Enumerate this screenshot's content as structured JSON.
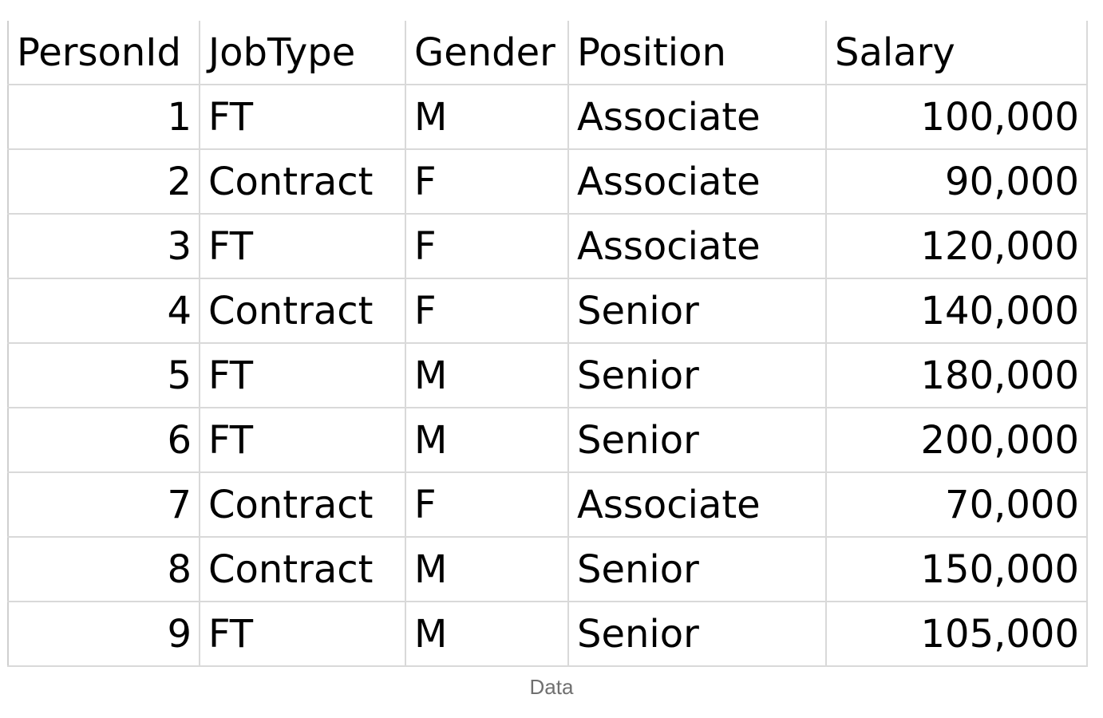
{
  "table": {
    "headers": [
      "PersonId",
      "JobType",
      "Gender",
      "Position",
      "Salary"
    ],
    "rows": [
      [
        "1",
        "FT",
        "M",
        "Associate",
        "100,000"
      ],
      [
        "2",
        "Contract",
        "F",
        "Associate",
        "90,000"
      ],
      [
        "3",
        "FT",
        "F",
        "Associate",
        "120,000"
      ],
      [
        "4",
        "Contract",
        "F",
        "Senior",
        "140,000"
      ],
      [
        "5",
        "FT",
        "M",
        "Senior",
        "180,000"
      ],
      [
        "6",
        "FT",
        "M",
        "Senior",
        "200,000"
      ],
      [
        "7",
        "Contract",
        "F",
        "Associate",
        "70,000"
      ],
      [
        "8",
        "Contract",
        "M",
        "Senior",
        "150,000"
      ],
      [
        "9",
        "FT",
        "M",
        "Senior",
        "105,000"
      ]
    ]
  },
  "caption": "Data"
}
